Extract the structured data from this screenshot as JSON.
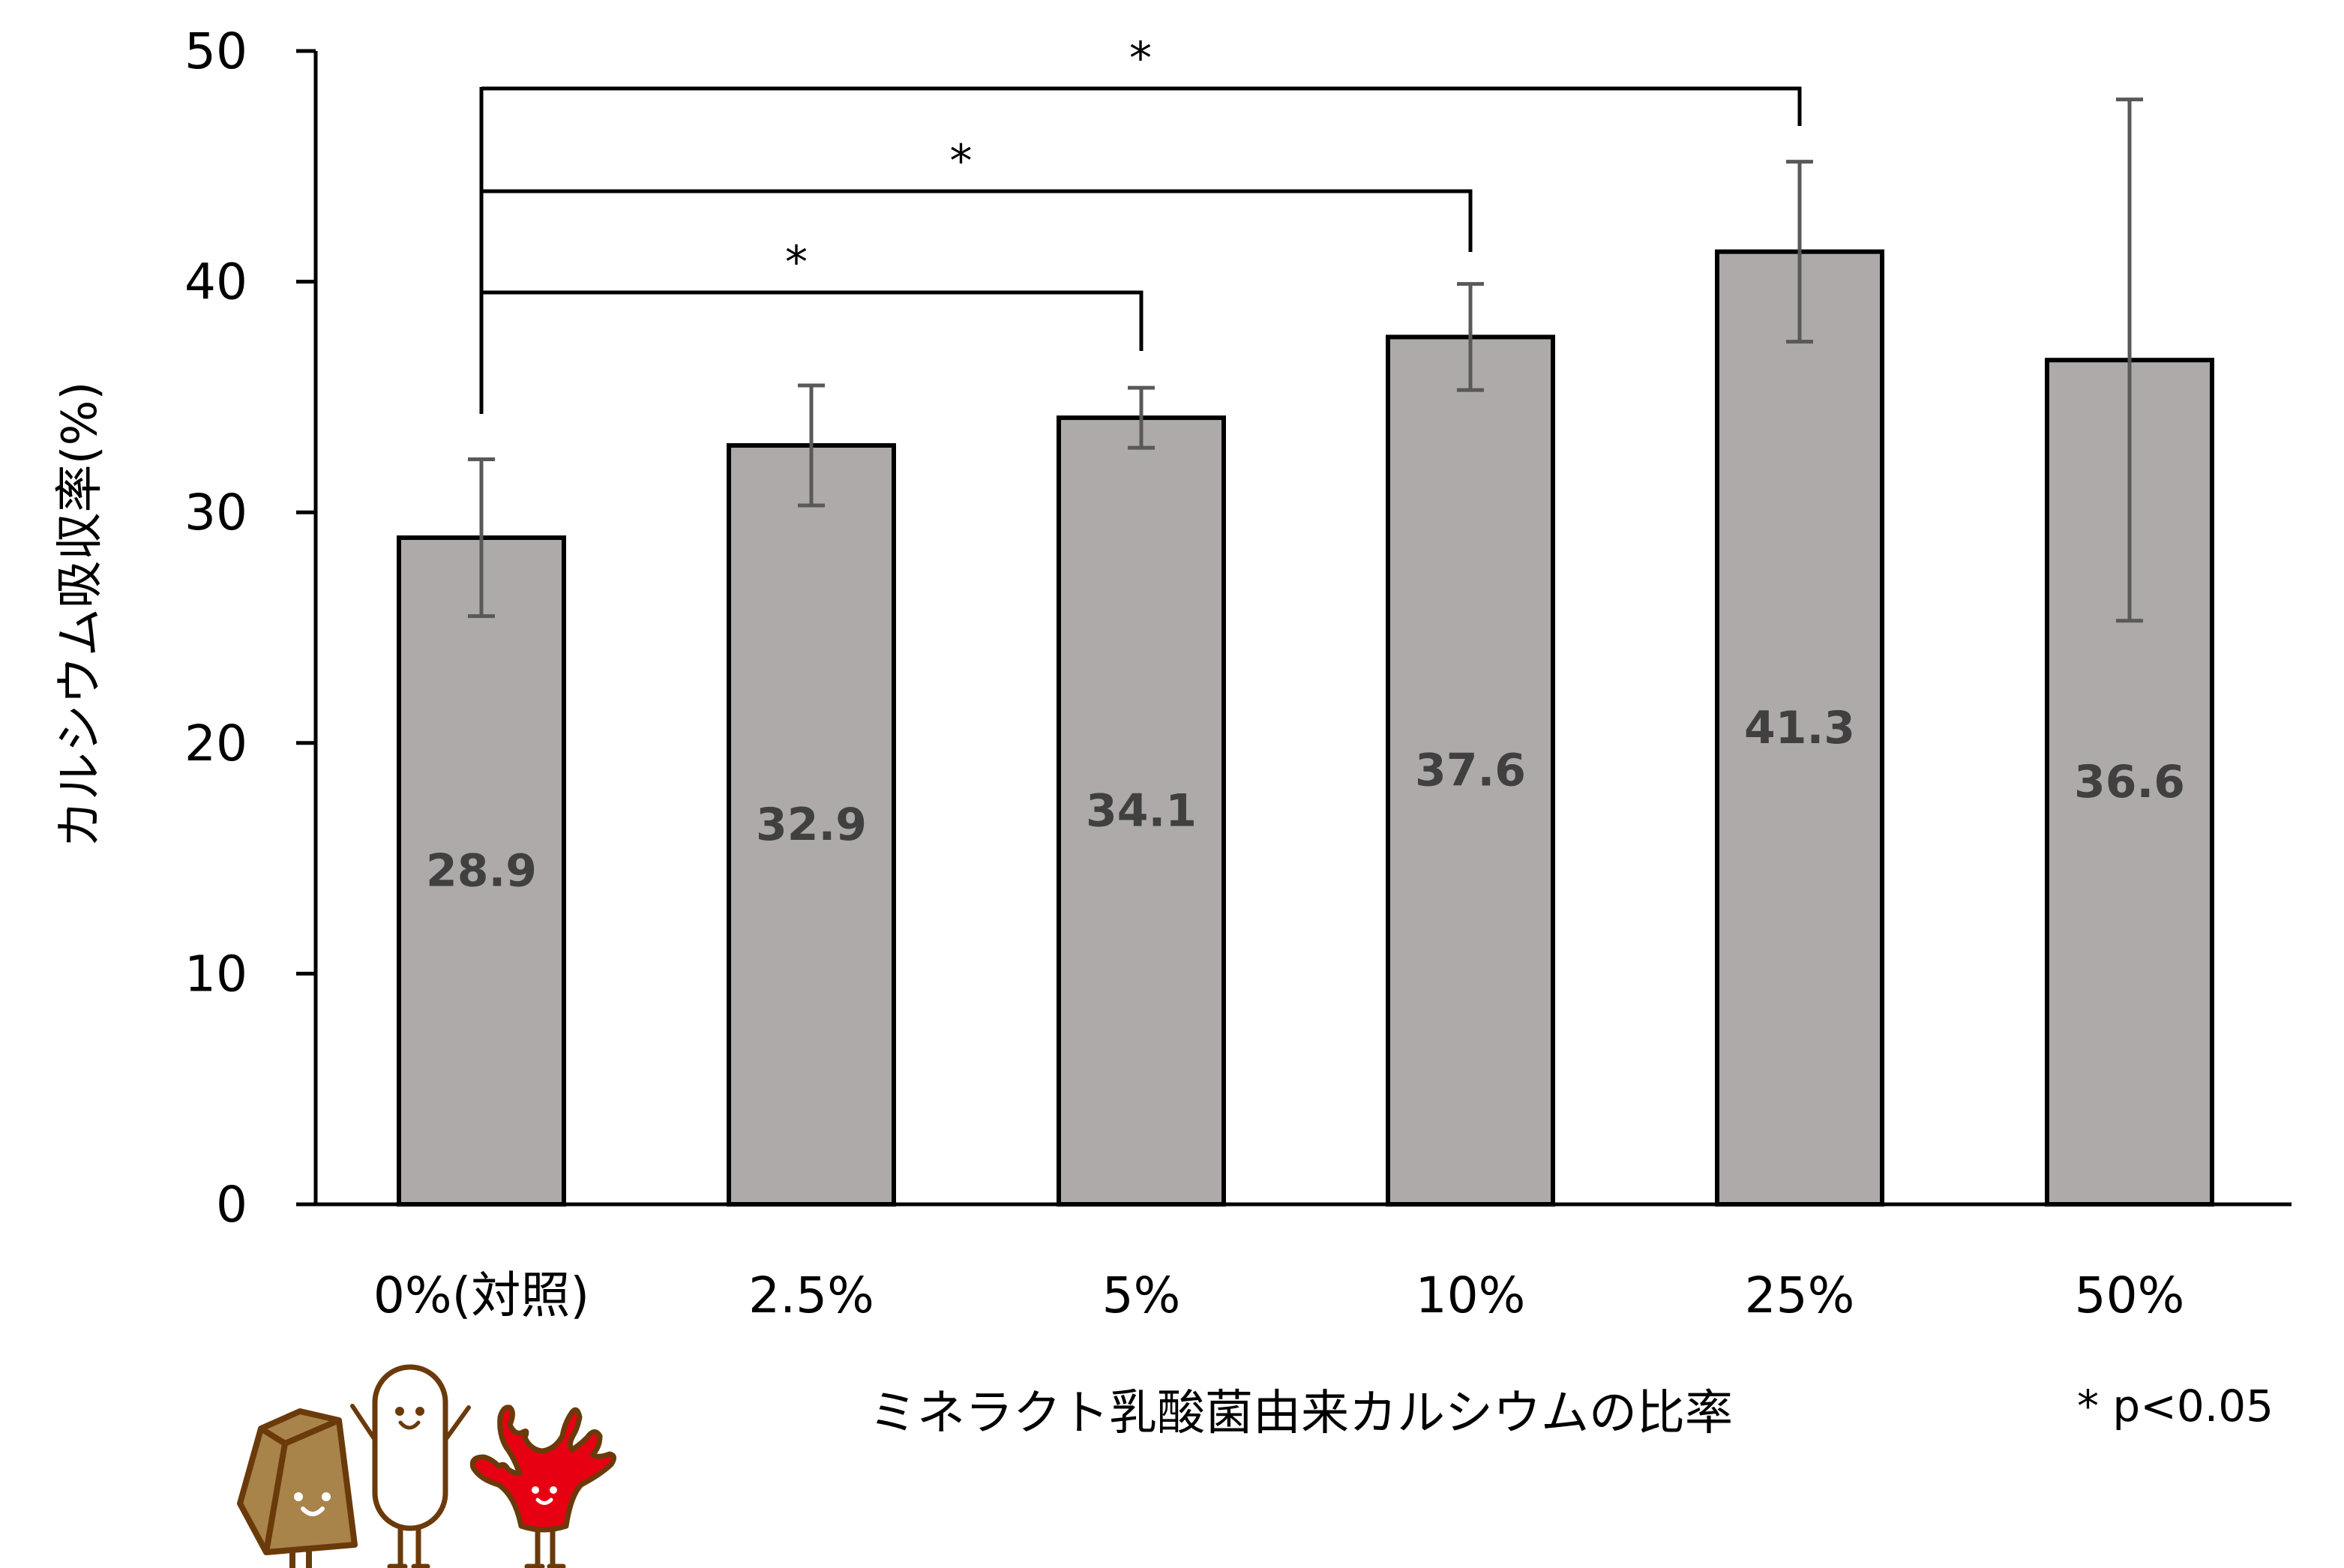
{
  "chart_data": {
    "type": "bar",
    "title": "",
    "xlabel": "ミネラクト乳酸菌由来カルシウムの比率",
    "ylabel": "カルシウム吸収率(%)",
    "ylim": [
      0,
      50
    ],
    "yticks": [
      0,
      10,
      20,
      30,
      40,
      50
    ],
    "grid": false,
    "legend": null,
    "categories": [
      "0%(対照)",
      "2.5%",
      "5%",
      "10%",
      "25%",
      "50%"
    ],
    "values": [
      28.9,
      32.9,
      34.1,
      37.6,
      41.3,
      36.6
    ],
    "value_labels": [
      "28.9",
      "32.9",
      "34.1",
      "37.6",
      "41.3",
      "36.6"
    ],
    "error_bars": {
      "upper": [
        32.3,
        35.5,
        35.4,
        39.9,
        45.2,
        47.9
      ],
      "lower": [
        25.5,
        30.3,
        32.8,
        35.3,
        37.4,
        25.3
      ]
    },
    "significance": [
      {
        "from": "0%(対照)",
        "to": "5%",
        "label": "*"
      },
      {
        "from": "0%(対照)",
        "to": "10%",
        "label": "*"
      },
      {
        "from": "0%(対照)",
        "to": "25%",
        "label": "*"
      }
    ],
    "annotation": "* p<0.05",
    "colors": {
      "bar_fill": "#AEAAA9",
      "bar_stroke": "#000000",
      "error_bar": "#595959",
      "value_label": "#404040"
    }
  },
  "mascots": [
    {
      "name": "calcium-stone-mascot",
      "body_color": "#A8834A",
      "outline": "#6B3A0A"
    },
    {
      "name": "lactic-bacteria-mascot",
      "body_color": "#FFFFFF",
      "outline": "#6B3A0A"
    },
    {
      "name": "coral-mascot",
      "body_color": "#E60012",
      "outline": "#6B3A0A"
    }
  ]
}
